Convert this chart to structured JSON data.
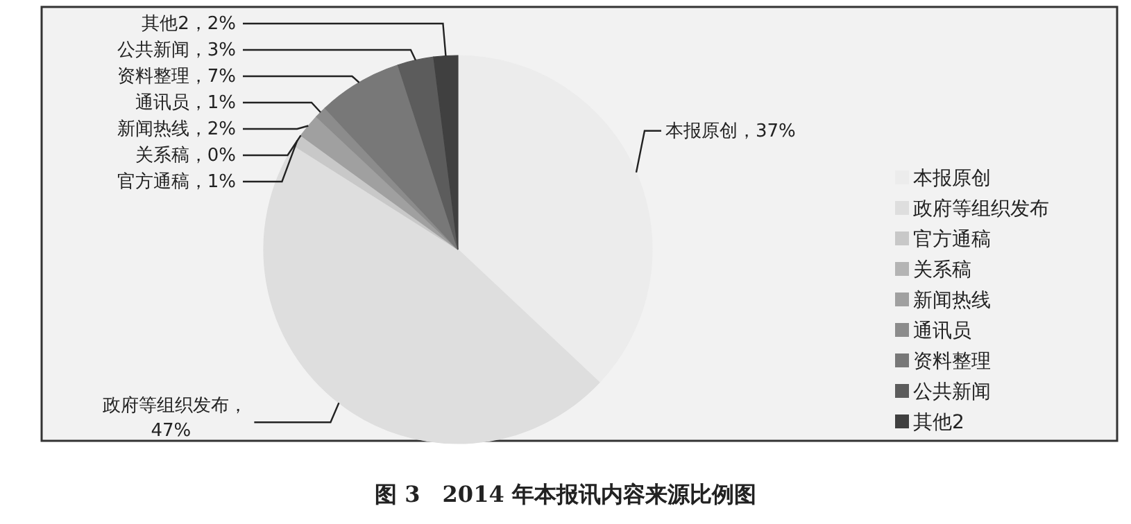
{
  "chart_data": {
    "type": "pie",
    "title": "图 3　2014 年本报讯内容来源比例图",
    "categories": [
      "本报原创",
      "政府等组织发布",
      "官方通稿",
      "关系稿",
      "新闻热线",
      "通讯员",
      "资料整理",
      "公共新闻",
      "其他2"
    ],
    "values": [
      37,
      47,
      1,
      0,
      2,
      1,
      7,
      3,
      2
    ],
    "colors": [
      "#ececec",
      "#dedede",
      "#c8c8c8",
      "#b4b4b4",
      "#a0a0a0",
      "#8c8c8c",
      "#787878",
      "#5c5c5c",
      "#404040"
    ],
    "value_labels": [
      "本报原创，37%",
      "政府等组织发布，47%",
      "官方通稿，1%",
      "关系稿，0%",
      "新闻热线，2%",
      "通讯员，1%",
      "资料整理，7%",
      "公共新闻，3%",
      "其他2，2%"
    ],
    "legend": "right"
  }
}
